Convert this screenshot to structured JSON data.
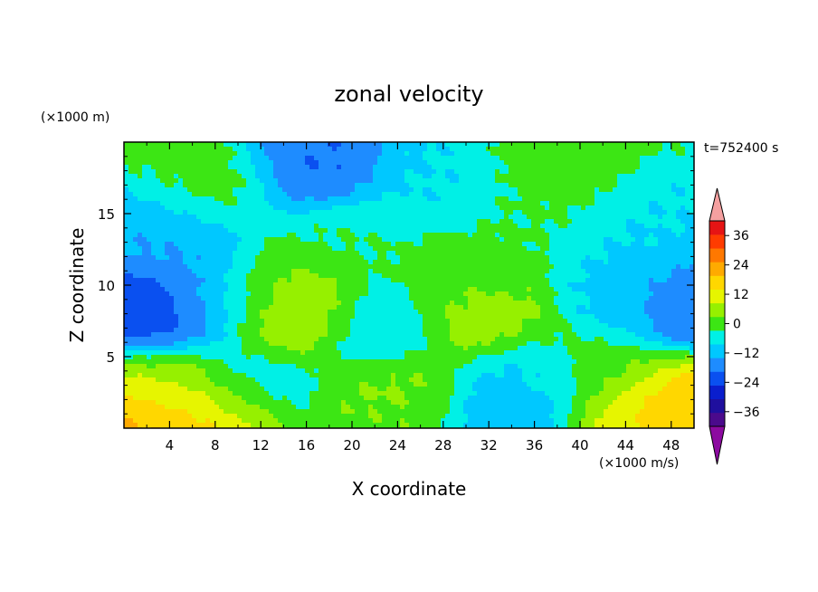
{
  "chart_data": {
    "type": "heatmap",
    "title": "zonal velocity",
    "xlabel": "X coordinate",
    "ylabel": "Z coordinate",
    "x_unit": "(×1000 m/s)",
    "y_unit": "(×1000 m)",
    "time_label": "t=752400 s",
    "xlim": [
      0,
      50
    ],
    "ylim": [
      0,
      20
    ],
    "xticks": [
      4,
      8,
      12,
      16,
      20,
      24,
      28,
      32,
      36,
      40,
      44,
      48
    ],
    "yticks": [
      5,
      10,
      15
    ],
    "colorbar": {
      "ticks": [
        36,
        24,
        12,
        0,
        -12,
        -24,
        -36
      ],
      "levels": [
        -42,
        -36,
        -30,
        -24,
        -18,
        -12,
        -6,
        0,
        6,
        12,
        18,
        24,
        30,
        36,
        42
      ],
      "colors": [
        "#4b0a8c",
        "#1f0f9e",
        "#0a1ecd",
        "#0a50f0",
        "#1e8cff",
        "#00c8ff",
        "#00f0e6",
        "#3ce614",
        "#96f000",
        "#e6f500",
        "#ffd700",
        "#ffaa00",
        "#ff7800",
        "#ff3c00",
        "#e61414"
      ],
      "over_color": "#f5a0a0",
      "under_color": "#8c0aa0"
    },
    "features": [
      {
        "x": 2,
        "z": 0.5,
        "value": 27
      },
      {
        "x": 8,
        "z": 1,
        "value": 21
      },
      {
        "x": 4,
        "z": 3,
        "value": 9
      },
      {
        "x": 3,
        "z": 8,
        "value": -24
      },
      {
        "x": 8,
        "z": 9,
        "value": -12
      },
      {
        "x": 15,
        "z": 8,
        "value": 15
      },
      {
        "x": 13,
        "z": 9,
        "value": 6
      },
      {
        "x": 24,
        "z": 2,
        "value": 9
      },
      {
        "x": 24,
        "z": 1,
        "value": 3
      },
      {
        "x": 31,
        "z": 8,
        "value": 9
      },
      {
        "x": 30,
        "z": 11,
        "value": 3
      },
      {
        "x": 22,
        "z": 7,
        "value": -6
      },
      {
        "x": 33,
        "z": 1,
        "value": -12
      },
      {
        "x": 36,
        "z": 3,
        "value": -6
      },
      {
        "x": 45,
        "z": 1,
        "value": 15
      },
      {
        "x": 48,
        "z": 1,
        "value": 27
      },
      {
        "x": 48,
        "z": 9,
        "value": -18
      },
      {
        "x": 44,
        "z": 10,
        "value": -6
      },
      {
        "x": 17,
        "z": 18.5,
        "value": -18
      },
      {
        "x": 7,
        "z": 17,
        "value": 3
      },
      {
        "x": 4,
        "z": 14,
        "value": -12
      },
      {
        "x": 27,
        "z": 17,
        "value": -6
      },
      {
        "x": 38,
        "z": 18,
        "value": 3
      },
      {
        "x": 35,
        "z": 15,
        "value": 0
      },
      {
        "x": 20,
        "z": 13,
        "value": 0
      },
      {
        "x": 46,
        "z": 14,
        "value": -6
      },
      {
        "x": 11,
        "z": 3,
        "value": -6
      },
      {
        "x": 42,
        "z": 4,
        "value": 3
      }
    ]
  }
}
